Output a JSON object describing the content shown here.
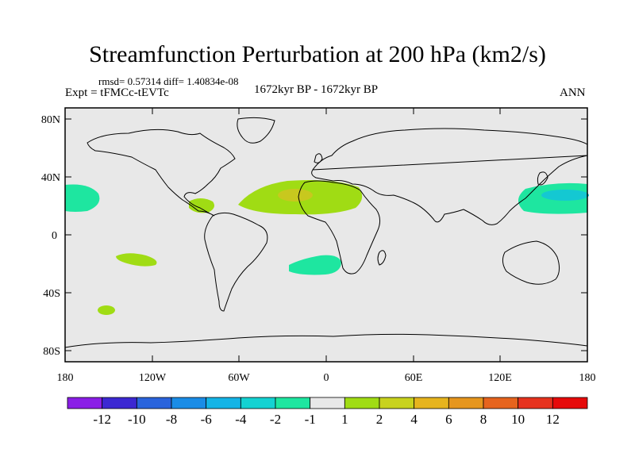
{
  "title": "Streamfunction Perturbation at 200 hPa (km2/s)",
  "stats": "rmsd= 0.57314 diff= 1.40834e-08",
  "expt": "Expt = tFMCc-tEVTc",
  "period": "1672kyr BP - 1672kyr BP",
  "season": "ANN",
  "lat_labels": [
    "80N",
    "40N",
    "0",
    "40S",
    "80S"
  ],
  "lon_labels": [
    "180",
    "120W",
    "60W",
    "0",
    "60E",
    "120E",
    "180"
  ],
  "colorbar": {
    "labels": [
      "-12",
      "-10",
      "-8",
      "-6",
      "-4",
      "-2",
      "-1",
      "1",
      "2",
      "4",
      "6",
      "8",
      "10",
      "12"
    ],
    "colors": [
      "#8a1ee6",
      "#3c28d2",
      "#2a64dc",
      "#1a8ce6",
      "#14b4e6",
      "#14d2d2",
      "#1ee6a0",
      "#e8e8e8",
      "#a0dc14",
      "#c8d21e",
      "#e6b41e",
      "#e6961e",
      "#e6641e",
      "#e6321e",
      "#e60a0a"
    ]
  },
  "colors": {
    "land_ocean_bg": "#e8e8e8",
    "neg_light": "#1ee6a0",
    "neg_mid": "#14d2d2",
    "pos_light": "#a0dc14",
    "pos_mid": "#c8d21e"
  }
}
